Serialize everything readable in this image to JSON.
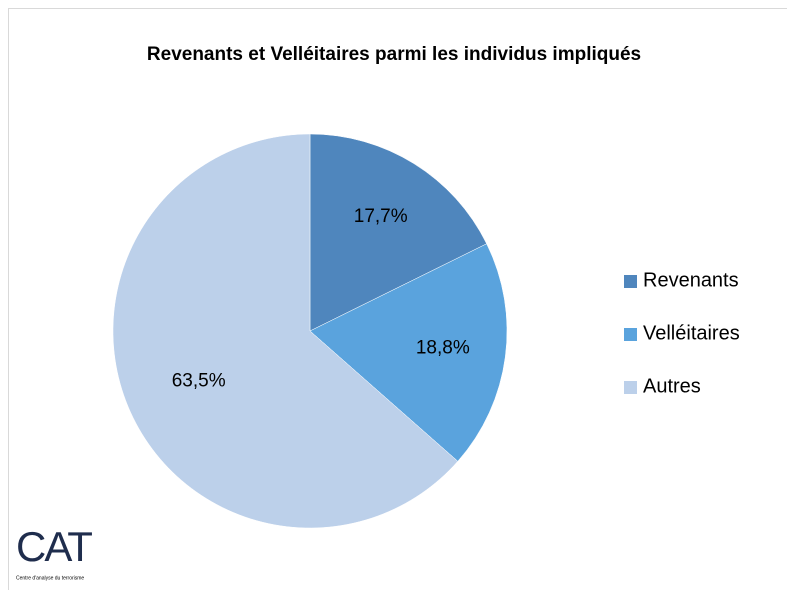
{
  "chart_data": {
    "type": "pie",
    "title": "Revenants et Velléitaires parmi les individus impliqués",
    "categories": [
      "Revenants",
      "Velléitaires",
      "Autres"
    ],
    "values": [
      17.7,
      18.8,
      63.5
    ],
    "value_labels": [
      "17,7%",
      "18,8%",
      "63,5%"
    ],
    "colors": [
      "#4f86bd",
      "#5aa3dd",
      "#bcd0ea"
    ],
    "legend": "right"
  },
  "logo": {
    "text": "CAT",
    "caption": "Centre d'analyse du terrorisme"
  }
}
